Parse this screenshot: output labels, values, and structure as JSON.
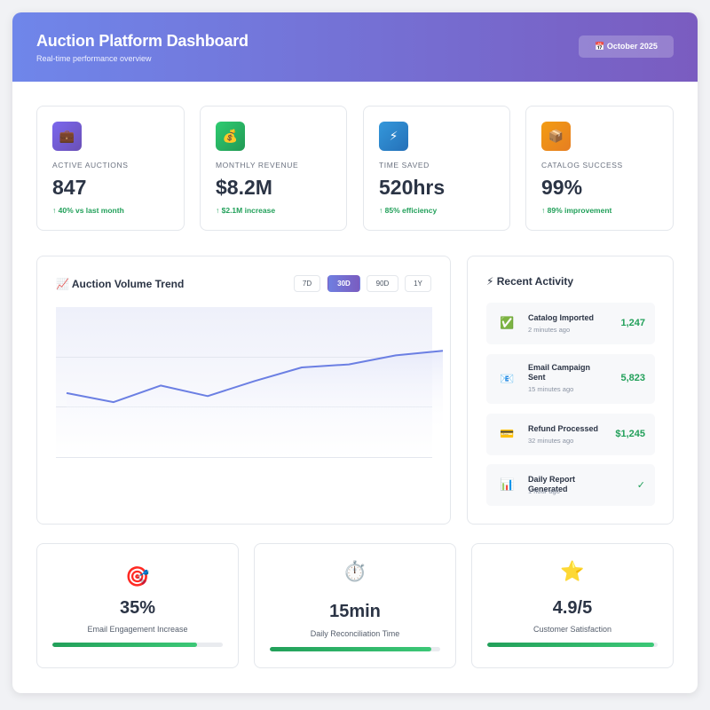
{
  "header": {
    "title": "Auction Platform Dashboard",
    "subtitle": "Real-time performance overview",
    "date_icon": "calendar-icon",
    "date_label": "📅 October 2025"
  },
  "kpis": [
    {
      "icon": "briefcase-icon",
      "glyph": "💼",
      "color": "#7a5cc0",
      "label": "Active Auctions",
      "value": "847",
      "delta": "↑ 40% vs last month"
    },
    {
      "icon": "money-bag-icon",
      "glyph": "💰",
      "color": "#27ae60",
      "label": "Monthly Revenue",
      "value": "$8.2M",
      "delta": "↑ $2.1M increase"
    },
    {
      "icon": "lightning-icon",
      "glyph": "⚡",
      "color": "#2f8fd6",
      "label": "Time Saved",
      "value": "520hrs",
      "delta": "↑ 85% efficiency"
    },
    {
      "icon": "package-icon",
      "glyph": "📦",
      "color": "#f0901e",
      "label": "Catalog Success",
      "value": "99%",
      "delta": "↑ 89% improvement"
    }
  ],
  "chart_panel": {
    "title": "📈 Auction Volume Trend",
    "ranges": [
      "7D",
      "30D",
      "90D",
      "1Y"
    ],
    "active_range": "30D"
  },
  "chart_data": {
    "type": "line",
    "title": "Auction Volume Trend",
    "x": [
      1,
      2,
      3,
      4,
      5,
      6,
      7,
      8,
      9
    ],
    "values": [
      43,
      37,
      48,
      41,
      51,
      60,
      62,
      68,
      71
    ],
    "ylim": [
      0,
      100
    ],
    "grid": true,
    "line_color": "#6b7fe3"
  },
  "activity": {
    "title": "⚡ Recent Activity",
    "items": [
      {
        "icon": "check-icon",
        "glyph": "✅",
        "name": "Catalog Imported",
        "time": "2 minutes ago",
        "value": "1,247"
      },
      {
        "icon": "email-icon",
        "glyph": "📧",
        "name": "Email Campaign Sent",
        "time": "15 minutes ago",
        "value": "5,823"
      },
      {
        "icon": "credit-card-icon",
        "glyph": "💳",
        "name": "Refund Processed",
        "time": "32 minutes ago",
        "value": "$1,245"
      },
      {
        "icon": "bar-chart-icon",
        "glyph": "📊",
        "name": "Daily Report Generated",
        "time": "1 hour ago",
        "value": "✓"
      }
    ]
  },
  "stats": [
    {
      "icon": "target-icon",
      "glyph": "🎯",
      "value": "35%",
      "label": "Email Engagement Increase",
      "progress": 0.85
    },
    {
      "icon": "stopwatch-icon",
      "glyph": "⏱️",
      "value": "15min",
      "label": "Daily Reconciliation Time",
      "progress": 0.95
    },
    {
      "icon": "star-icon",
      "glyph": "⭐",
      "value": "4.9/5",
      "label": "Customer Satisfaction",
      "progress": 0.98
    }
  ]
}
